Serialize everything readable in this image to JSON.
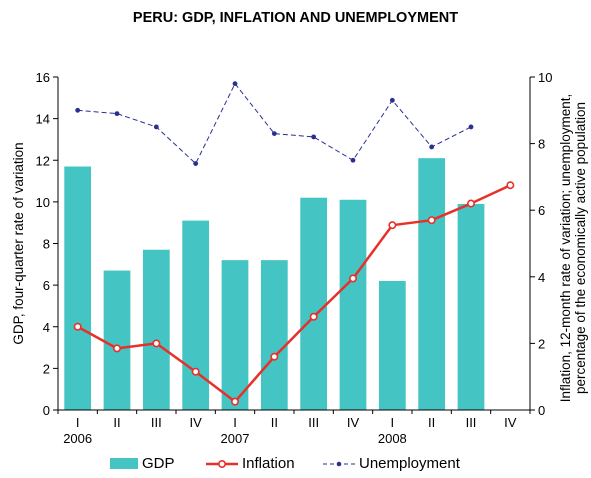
{
  "chart_data": {
    "type": "bar",
    "title": "PERU: GDP, INFLATION AND UNEMPLOYMENT",
    "x_quarter_labels": [
      "I",
      "II",
      "III",
      "IV",
      "I",
      "II",
      "III",
      "IV",
      "I",
      "II",
      "III",
      "IV"
    ],
    "x_year_labels": [
      {
        "label": "2006",
        "index": 0
      },
      {
        "label": "2007",
        "index": 4
      },
      {
        "label": "2008",
        "index": 8
      }
    ],
    "y_left": {
      "label": "GDP, four-quarter rate of variation",
      "lim": [
        0,
        16
      ],
      "ticks": [
        0,
        2,
        4,
        6,
        8,
        10,
        12,
        14,
        16
      ]
    },
    "y_right": {
      "label_line1": "Inflation, 12-month rate of variation; unemployment,",
      "label_line2": "percentage of the economically active population",
      "lim": [
        0,
        10
      ],
      "ticks": [
        0,
        2,
        4,
        6,
        8,
        10
      ]
    },
    "series": [
      {
        "name": "GDP",
        "kind": "bar",
        "axis": "left",
        "color": "#45C4C4",
        "values": [
          11.7,
          6.7,
          7.7,
          9.1,
          7.2,
          7.2,
          10.2,
          10.1,
          6.2,
          12.1,
          9.9,
          null
        ]
      },
      {
        "name": "Inflation",
        "kind": "line",
        "axis": "right",
        "color": "#E8302A",
        "values": [
          2.5,
          1.85,
          2.0,
          1.15,
          0.25,
          1.6,
          2.8,
          3.95,
          5.55,
          5.7,
          6.2,
          6.75
        ]
      },
      {
        "name": "Unemployment",
        "kind": "dashed-line",
        "axis": "right",
        "color": "#2B2F8F",
        "values": [
          9.0,
          8.9,
          8.5,
          7.4,
          9.8,
          8.3,
          8.2,
          7.5,
          9.3,
          7.9,
          8.5,
          null
        ]
      }
    ],
    "legend_position": "bottom"
  }
}
